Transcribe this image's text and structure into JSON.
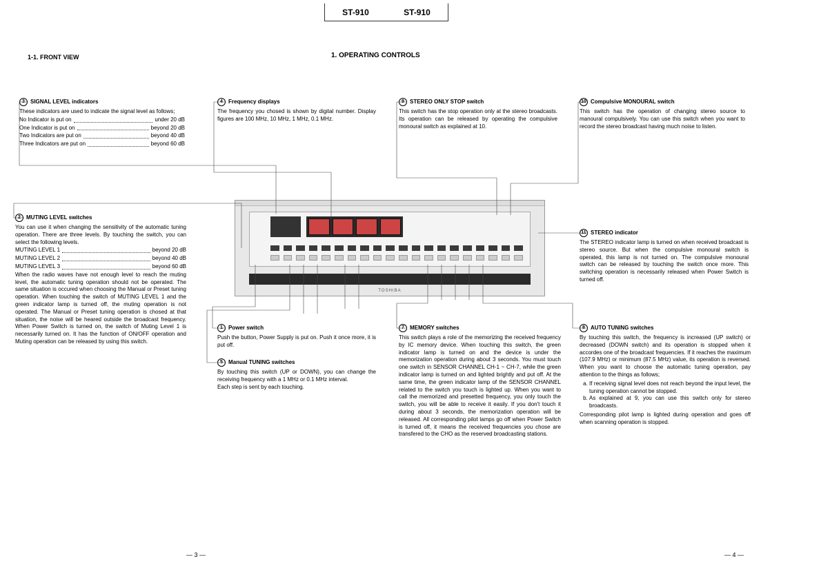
{
  "model": {
    "left": "ST-910",
    "right": "ST-910"
  },
  "section_title": "1.  OPERATING CONTROLS",
  "subsection": "1-1.   FRONT VIEW",
  "brand": "TOSHIBA",
  "page_left": "—  3  —",
  "page_right": "—  4  —",
  "callouts": {
    "c3": {
      "num": "3",
      "title": "SIGNAL LEVEL indicators",
      "intro": "These indicators are used to indicate the signal level as follows;",
      "rows": [
        {
          "lbl": "No Indicator is put on",
          "val": "under 20 dB"
        },
        {
          "lbl": "One Indicator is put on",
          "val": "beyond 20 dB"
        },
        {
          "lbl": "Two Indicators are put on",
          "val": "beyond 40 dB"
        },
        {
          "lbl": "Three Indicators are put on",
          "val": "beyond 60 dB"
        }
      ]
    },
    "c4": {
      "num": "4",
      "title": "Frequency displays",
      "body": "The frequency you chosed is shown by digital number. Display figures are 100 MHz, 10 MHz, 1 MHz, 0.1 MHz."
    },
    "c9": {
      "num": "9",
      "title": "STEREO ONLY STOP switch",
      "body": "This switch has the stop operation only at the stereo broadcasts. Its operation can be released by operating the compulsive monoural switch as explained at 10."
    },
    "c10": {
      "num": "10",
      "title": "Compulsive MONOURAL switch",
      "body": "This switch has the operation of changing stereo source to manoural compulsively. You can use this switch when you want to record the stereo broadcast having much noise to listen."
    },
    "c2": {
      "num": "2",
      "title": "MUTING LEVEL switches",
      "intro": "You can use it when changing the sensitivity of the automatic tuning operation. There are three levels. By touching the switch, you can select the following levels.",
      "rows": [
        {
          "lbl": "MUTING LEVEL 1",
          "val": "beyond 20 dB"
        },
        {
          "lbl": "MUTING LEVEL 2",
          "val": "beyond 40 dB"
        },
        {
          "lbl": "MUTING LEVEL 3",
          "val": "beyond 60 dB"
        }
      ],
      "body": "When the radio waves have not enough level to reach the muting level, the automatic tuning operation should not be operated. The same situation is occured when choosing the Manual or Preset tuning operation. When touching the switch of MUTING LEVEL 1 and the green indicator lamp is turned off, the muting operation is not operated. The Manual or Preset tuning operation is chosed at that situation, the noise will be heared outside the broadcast frequency. When Power Switch is turned on, the switch of Muting Level 1 is necessarily turned on. It has the function of ON/OFF operation and Muting operation can be released by using this switch."
    },
    "c11": {
      "num": "11",
      "title": "STEREO indicator",
      "body": "The STEREO indicator lamp is turned on when received broadcast is stereo source. But when the compulsive monoural switch is operated, this lamp is not turned on. The compulsive monoural switch can be released by touching the switch once more. This switching operation is necessarily released when Power Switch is turned off."
    },
    "c1": {
      "num": "1",
      "title": "Power switch",
      "body": "Push the button, Power Supply is put on. Push it once more, it is put off."
    },
    "c5": {
      "num": "5",
      "title": "Manual TUNING switches",
      "body": "By touching this switch (UP or DOWN), you can change the receiving frequency with a 1 MHz or 0.1 MHz interval.\nEach step is sent by each touching."
    },
    "c7": {
      "num": "7",
      "title": "MEMORY switches",
      "body": "This switch plays a role of the memorizing the received frequency by IC memory device. When touching this switch, the green indicator lamp is turned on and the device is under the memorization operation during about 3 seconds. You must touch one switch in SENSOR CHANNEL CH-1 ~ CH-7, while the green indicator lamp is turned on and lighted brightly and put off. At the same time, the green indicator lamp of the SENSOR CHANNEL related to the switch you touch is lighted up. When you want to call the memorized and presetted frequency, you only touch the switch, you will be able to receive it easily. If you don't touch it during about 3 seconds, the memorization operation will be released. All corresponding pilot lamps go off when Power Switch is turned off, it means the received frequencies you chose are transfered to the CHO as the reserved broadcasting stations."
    },
    "c8": {
      "num": "8",
      "title": "AUTO TUNING switches",
      "body": "By touching this switch, the frequency is increased (UP switch) or decreased (DOWN switch) and its operation is stopped when it accordes one of the broadcast frequencies. If it reaches the maximum (107.9 MHz) or minimum (87.5 MHz) value, its operation is reversed. When you want to choose the automatic tuning operation, pay attention to the things as follows;",
      "list": [
        "If receiving signal level does not reach beyond the input level, the tuning operation cannot be stopped.",
        "As explained at 9, you can use this switch only for stereo broadcasts."
      ],
      "tail": "Corresponding pilot lamp is lighted during operation and goes off when scanning operation is stopped."
    }
  }
}
